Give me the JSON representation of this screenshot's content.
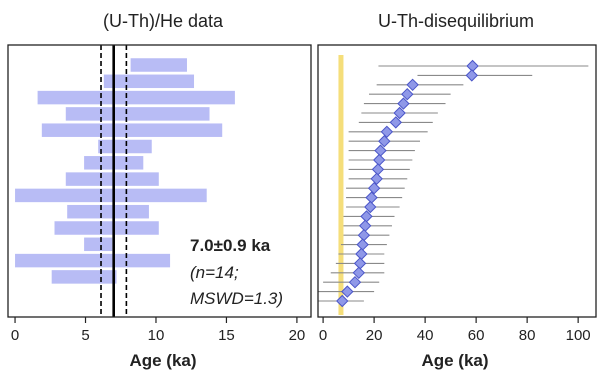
{
  "chart_data": [
    {
      "type": "bar",
      "title": "(U-Th)/He data",
      "xlabel": "Age (ka)",
      "xlim": [
        -0.5,
        21
      ],
      "xticks": [
        0,
        5,
        10,
        15,
        20
      ],
      "colors": {
        "bar": "#b8bcf5",
        "mean": "#000000"
      },
      "bars_top_to_bottom": [
        {
          "age": 10.2,
          "err": 2.0
        },
        {
          "age": 9.5,
          "err": 3.2
        },
        {
          "age": 8.6,
          "err": 7.0
        },
        {
          "age": 8.7,
          "err": 5.1
        },
        {
          "age": 8.3,
          "err": 6.4
        },
        {
          "age": 7.8,
          "err": 1.9
        },
        {
          "age": 7.0,
          "err": 2.1
        },
        {
          "age": 6.9,
          "err": 3.3
        },
        {
          "age": 6.8,
          "err": 6.8
        },
        {
          "age": 6.6,
          "err": 2.9
        },
        {
          "age": 6.5,
          "err": 3.7
        },
        {
          "age": 5.9,
          "err": 1.0
        },
        {
          "age": 5.5,
          "err": 5.5
        },
        {
          "age": 4.9,
          "err": 2.3
        }
      ],
      "weighted_mean": 7.0,
      "mean_uncertainty": 0.9,
      "annotation": [
        "7.0±0.9 ka",
        "(n=14;",
        "MSWD=1.3)"
      ]
    },
    {
      "type": "scatter",
      "title": "U-Th-disequilibrium",
      "xlabel": "Age (ka)",
      "xlim": [
        -2,
        107
      ],
      "xticks": [
        0,
        20,
        40,
        60,
        80,
        100
      ],
      "colors": {
        "marker": "#8f98e8",
        "marker_edge": "#4a55c8",
        "errorbar": "#8a8a8a",
        "band": "#f5de7a"
      },
      "band": 7.0,
      "points_top_to_bottom": [
        {
          "age": 58.6,
          "lo": 21.7,
          "hi": 104.0
        },
        {
          "age": 58.3,
          "lo": 37.0,
          "hi": 82.0
        },
        {
          "age": 35.1,
          "lo": 21.0,
          "hi": 55.0
        },
        {
          "age": 33.0,
          "lo": 18.0,
          "hi": 50.0
        },
        {
          "age": 31.5,
          "lo": 16.0,
          "hi": 48.0
        },
        {
          "age": 30.0,
          "lo": 15.0,
          "hi": 45.0
        },
        {
          "age": 28.5,
          "lo": 14.0,
          "hi": 43.0
        },
        {
          "age": 25.0,
          "lo": 10.0,
          "hi": 41.0
        },
        {
          "age": 24.0,
          "lo": 10.0,
          "hi": 38.0
        },
        {
          "age": 22.5,
          "lo": 10.0,
          "hi": 36.0
        },
        {
          "age": 22.0,
          "lo": 10.0,
          "hi": 35.0
        },
        {
          "age": 21.5,
          "lo": 10.0,
          "hi": 34.0
        },
        {
          "age": 21.0,
          "lo": 10.0,
          "hi": 33.0
        },
        {
          "age": 20.0,
          "lo": 9.0,
          "hi": 32.0
        },
        {
          "age": 19.0,
          "lo": 9.0,
          "hi": 31.0
        },
        {
          "age": 18.5,
          "lo": 9.0,
          "hi": 30.0
        },
        {
          "age": 17.0,
          "lo": 8.0,
          "hi": 28.0
        },
        {
          "age": 16.5,
          "lo": 8.0,
          "hi": 27.0
        },
        {
          "age": 16.0,
          "lo": 8.0,
          "hi": 26.0
        },
        {
          "age": 15.5,
          "lo": 7.0,
          "hi": 25.0
        },
        {
          "age": 15.0,
          "lo": 6.0,
          "hi": 24.0
        },
        {
          "age": 14.5,
          "lo": 5.0,
          "hi": 24.0
        },
        {
          "age": 14.0,
          "lo": 3.0,
          "hi": 24.0
        },
        {
          "age": 12.5,
          "lo": 0.0,
          "hi": 22.0
        },
        {
          "age": 9.5,
          "lo": -2.0,
          "hi": 20.0
        },
        {
          "age": 7.5,
          "lo": -2.0,
          "hi": 16.0
        }
      ]
    }
  ]
}
